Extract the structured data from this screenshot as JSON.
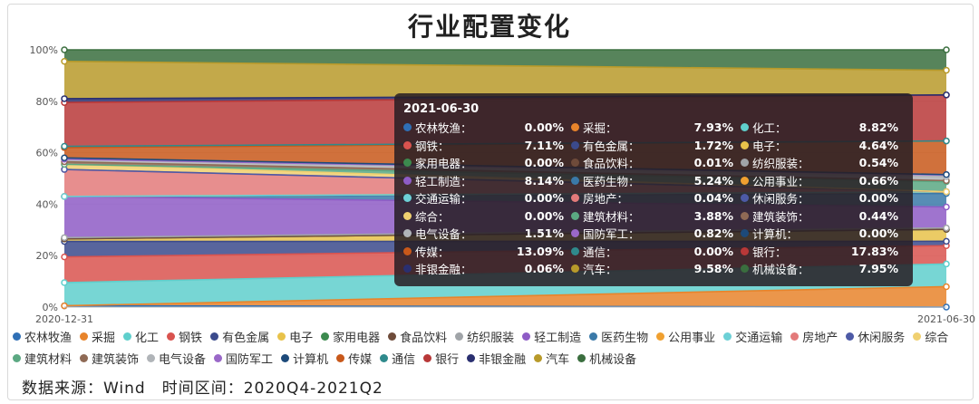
{
  "title": "行业配置变化",
  "source_text": "数据来源：Wind　时间区间：2020Q4-2021Q2",
  "tooltip": {
    "date": "2021-06-30",
    "rows": [
      {
        "name": "农林牧渔",
        "value": "0.00%",
        "color": "#2f6fb5"
      },
      {
        "name": "采掘",
        "value": "7.93%",
        "color": "#e8842b"
      },
      {
        "name": "化工",
        "value": "8.82%",
        "color": "#5fcfcc"
      },
      {
        "name": "钢铁",
        "value": "7.11%",
        "color": "#d9534f"
      },
      {
        "name": "有色金属",
        "value": "1.72%",
        "color": "#3b4a8c"
      },
      {
        "name": "电子",
        "value": "4.64%",
        "color": "#e8c24a"
      },
      {
        "name": "家用电器",
        "value": "0.00%",
        "color": "#3c8a4e"
      },
      {
        "name": "食品饮料",
        "value": "0.01%",
        "color": "#6e4b3a"
      },
      {
        "name": "纺织服装",
        "value": "0.54%",
        "color": "#a0a4a8"
      },
      {
        "name": "轻工制造",
        "value": "8.14%",
        "color": "#8e5cc6"
      },
      {
        "name": "医药生物",
        "value": "5.24%",
        "color": "#3a79a8"
      },
      {
        "name": "公用事业",
        "value": "0.66%",
        "color": "#f0a030"
      },
      {
        "name": "交通运输",
        "value": "0.00%",
        "color": "#6dd0d6"
      },
      {
        "name": "房地产",
        "value": "0.04%",
        "color": "#e37a7a"
      },
      {
        "name": "休闲服务",
        "value": "0.00%",
        "color": "#4d5aa6"
      },
      {
        "name": "综合",
        "value": "0.00%",
        "color": "#f0d070"
      },
      {
        "name": "建筑材料",
        "value": "3.88%",
        "color": "#5ba882"
      },
      {
        "name": "建筑装饰",
        "value": "0.44%",
        "color": "#8f6a55"
      },
      {
        "name": "电气设备",
        "value": "1.51%",
        "color": "#b0b4b8"
      },
      {
        "name": "国防军工",
        "value": "0.82%",
        "color": "#9a68c8"
      },
      {
        "name": "计算机",
        "value": "0.00%",
        "color": "#1d4a7a"
      },
      {
        "name": "传媒",
        "value": "13.09%",
        "color": "#c8581a"
      },
      {
        "name": "通信",
        "value": "0.00%",
        "color": "#2f8a8c"
      },
      {
        "name": "银行",
        "value": "17.83%",
        "color": "#b83838"
      },
      {
        "name": "非银金融",
        "value": "0.06%",
        "color": "#2a2f70"
      },
      {
        "name": "汽车",
        "value": "9.58%",
        "color": "#b89a2a"
      },
      {
        "name": "机械设备",
        "value": "7.95%",
        "color": "#3a6e3e"
      }
    ]
  },
  "legend": [
    {
      "name": "农林牧渔",
      "color": "#2f6fb5"
    },
    {
      "name": "采掘",
      "color": "#e8842b"
    },
    {
      "name": "化工",
      "color": "#5fcfcc"
    },
    {
      "name": "钢铁",
      "color": "#d9534f"
    },
    {
      "name": "有色金属",
      "color": "#3b4a8c"
    },
    {
      "name": "电子",
      "color": "#e8c24a"
    },
    {
      "name": "家用电器",
      "color": "#3c8a4e"
    },
    {
      "name": "食品饮料",
      "color": "#6e4b3a"
    },
    {
      "name": "纺织服装",
      "color": "#a0a4a8"
    },
    {
      "name": "轻工制造",
      "color": "#8e5cc6"
    },
    {
      "name": "医药生物",
      "color": "#3a79a8"
    },
    {
      "name": "公用事业",
      "color": "#f0a030"
    },
    {
      "name": "交通运输",
      "color": "#6dd0d6"
    },
    {
      "name": "房地产",
      "color": "#e37a7a"
    },
    {
      "name": "休闲服务",
      "color": "#4d5aa6"
    },
    {
      "name": "综合",
      "color": "#f0d070"
    },
    {
      "name": "建筑材料",
      "color": "#5ba882"
    },
    {
      "name": "建筑装饰",
      "color": "#8f6a55"
    },
    {
      "name": "电气设备",
      "color": "#b0b4b8"
    },
    {
      "name": "国防军工",
      "color": "#9a68c8"
    },
    {
      "name": "计算机",
      "color": "#1d4a7a"
    },
    {
      "name": "传媒",
      "color": "#c8581a"
    },
    {
      "name": "通信",
      "color": "#2f8a8c"
    },
    {
      "name": "银行",
      "color": "#b83838"
    },
    {
      "name": "非银金融",
      "color": "#2a2f70"
    },
    {
      "name": "汽车",
      "color": "#b89a2a"
    },
    {
      "name": "机械设备",
      "color": "#3a6e3e"
    }
  ],
  "chart_data": {
    "type": "area",
    "stacked": true,
    "normalized_percent": true,
    "title": "行业配置变化",
    "x": [
      "2020-12-31",
      "2021-06-30"
    ],
    "ylim": [
      0,
      100
    ],
    "yticks": [
      "0%",
      "20%",
      "40%",
      "60%",
      "80%",
      "100%"
    ],
    "grid": true,
    "legend_position": "bottom",
    "series": [
      {
        "name": "农林牧渔",
        "values": [
          0.5,
          0.0
        ],
        "color": "#2f6fb5"
      },
      {
        "name": "采掘",
        "values": [
          0.0,
          7.93
        ],
        "color": "#e8842b"
      },
      {
        "name": "化工",
        "values": [
          9.0,
          8.82
        ],
        "color": "#5fcfcc"
      },
      {
        "name": "钢铁",
        "values": [
          10.0,
          7.11
        ],
        "color": "#d9534f"
      },
      {
        "name": "有色金属",
        "values": [
          6.0,
          1.72
        ],
        "color": "#3b4a8c"
      },
      {
        "name": "电子",
        "values": [
          1.0,
          4.64
        ],
        "color": "#e8c24a"
      },
      {
        "name": "家用电器",
        "values": [
          0.0,
          0.0
        ],
        "color": "#3c8a4e"
      },
      {
        "name": "食品饮料",
        "values": [
          0.0,
          0.01
        ],
        "color": "#6e4b3a"
      },
      {
        "name": "纺织服装",
        "values": [
          0.5,
          0.54
        ],
        "color": "#a0a4a8"
      },
      {
        "name": "轻工制造",
        "values": [
          16.0,
          8.14
        ],
        "color": "#8e5cc6"
      },
      {
        "name": "医药生物",
        "values": [
          0.0,
          5.24
        ],
        "color": "#3a79a8"
      },
      {
        "name": "公用事业",
        "values": [
          0.0,
          0.66
        ],
        "color": "#f0a030"
      },
      {
        "name": "交通运输",
        "values": [
          0.0,
          0.0
        ],
        "color": "#6dd0d6"
      },
      {
        "name": "房地产",
        "values": [
          10.5,
          0.04
        ],
        "color": "#e37a7a"
      },
      {
        "name": "休闲服务",
        "values": [
          0.0,
          0.0
        ],
        "color": "#4d5aa6"
      },
      {
        "name": "综合",
        "values": [
          2.0,
          0.0
        ],
        "color": "#f0d070"
      },
      {
        "name": "建筑材料",
        "values": [
          0.0,
          3.88
        ],
        "color": "#5ba882"
      },
      {
        "name": "建筑装饰",
        "values": [
          1.0,
          0.44
        ],
        "color": "#8f6a55"
      },
      {
        "name": "电气设备",
        "values": [
          1.0,
          1.51
        ],
        "color": "#b0b4b8"
      },
      {
        "name": "国防军工",
        "values": [
          0.0,
          0.82
        ],
        "color": "#9a68c8"
      },
      {
        "name": "计算机",
        "values": [
          0.5,
          0.0
        ],
        "color": "#1d4a7a"
      },
      {
        "name": "传媒",
        "values": [
          4.0,
          13.09
        ],
        "color": "#c8581a"
      },
      {
        "name": "通信",
        "values": [
          0.5,
          0.0
        ],
        "color": "#2f8a8c"
      },
      {
        "name": "银行",
        "values": [
          17.0,
          17.83
        ],
        "color": "#b83838"
      },
      {
        "name": "非银金融",
        "values": [
          1.5,
          0.06
        ],
        "color": "#2a2f70"
      },
      {
        "name": "汽车",
        "values": [
          14.5,
          9.58
        ],
        "color": "#b89a2a"
      },
      {
        "name": "机械设备",
        "values": [
          4.5,
          7.95
        ],
        "color": "#3a6e3e"
      }
    ]
  }
}
